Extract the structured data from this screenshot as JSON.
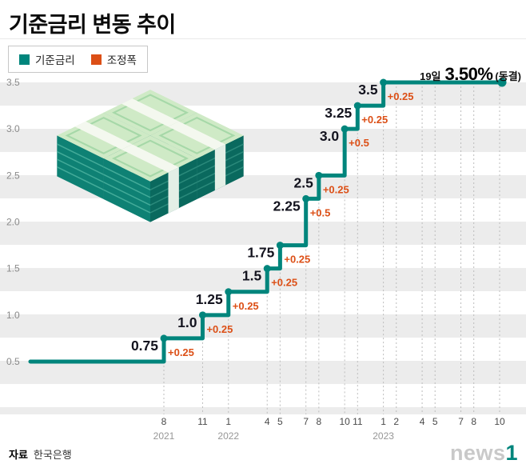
{
  "title": "기준금리 변동 추이",
  "source": {
    "label": "자료",
    "value": "한국은행"
  },
  "watermark": {
    "text": "news",
    "accent": "1"
  },
  "chart_data": {
    "type": "step-line",
    "title": "기준금리 변동 추이",
    "unit": "%",
    "legend": [
      {
        "label": "기준금리",
        "color": "#00857c"
      },
      {
        "label": "조정폭",
        "color": "#dc4f16"
      }
    ],
    "label_color": "#14141f",
    "grid_color": "#bcbcbc",
    "ylim": [
      0.25,
      3.6
    ],
    "yticks": [
      "3.5",
      "3.0",
      "2.5",
      "2.0",
      "1.5",
      "1.0",
      "0.5"
    ],
    "start_rate": 0.5,
    "events": [
      {
        "year": 2021,
        "month": 8,
        "rate": 0.75,
        "label": "0.75",
        "change": "+0.25"
      },
      {
        "year": 2021,
        "month": 11,
        "rate": 1.0,
        "label": "1.0",
        "change": "+0.25"
      },
      {
        "year": 2022,
        "month": 1,
        "rate": 1.25,
        "label": "1.25",
        "change": "+0.25"
      },
      {
        "year": 2022,
        "month": 4,
        "rate": 1.5,
        "label": "1.5",
        "change": "+0.25"
      },
      {
        "year": 2022,
        "month": 5,
        "rate": 1.75,
        "label": "1.75",
        "change": "+0.25"
      },
      {
        "year": 2022,
        "month": 7,
        "rate": 2.25,
        "label": "2.25",
        "change": "+0.5"
      },
      {
        "year": 2022,
        "month": 8,
        "rate": 2.5,
        "label": "2.5",
        "change": "+0.25"
      },
      {
        "year": 2022,
        "month": 10,
        "rate": 3.0,
        "label": "3.0",
        "change": "+0.5"
      },
      {
        "year": 2022,
        "month": 11,
        "rate": 3.25,
        "label": "3.25",
        "change": "+0.25"
      },
      {
        "year": 2023,
        "month": 1,
        "rate": 3.5,
        "label": "3.5",
        "change": "+0.25"
      }
    ],
    "holds": [
      {
        "year": 2023,
        "month": 2
      },
      {
        "year": 2023,
        "month": 4
      },
      {
        "year": 2023,
        "month": 5
      },
      {
        "year": 2023,
        "month": 7
      },
      {
        "year": 2023,
        "month": 8
      },
      {
        "year": 2023,
        "month": 10
      }
    ],
    "x_year_marks": [
      {
        "year": "2021",
        "month": 8,
        "event_year": 2021
      },
      {
        "year": "2022",
        "month": 1,
        "event_year": 2022
      },
      {
        "year": "2023",
        "month": 1,
        "event_year": 2023
      }
    ],
    "annotation": {
      "date": "19일",
      "value": "3.50%",
      "note": "(동결)"
    }
  }
}
